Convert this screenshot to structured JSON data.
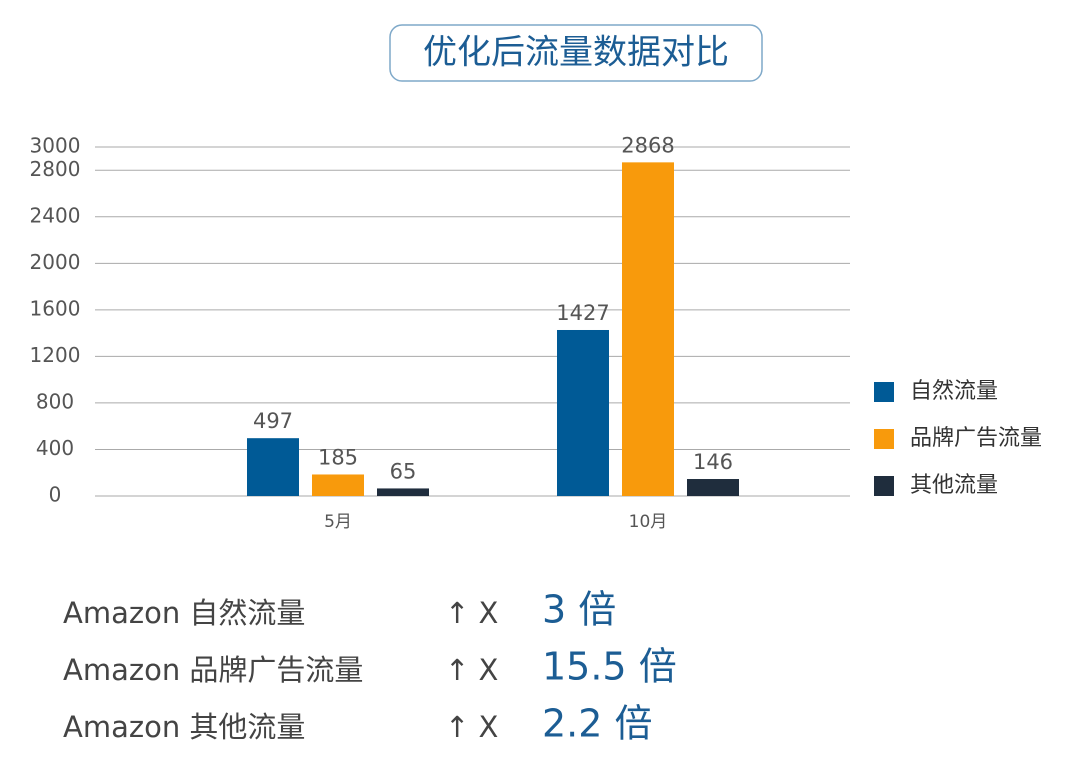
{
  "chart_data": {
    "type": "bar",
    "title": "优化后流量数据对比",
    "categories": [
      "5月",
      "10月"
    ],
    "series": [
      {
        "name": "自然流量",
        "color": "#005a96",
        "values": [
          497,
          1427
        ]
      },
      {
        "name": "品牌广告流量",
        "color": "#f89a0c",
        "values": [
          185,
          2868
        ]
      },
      {
        "name": "其他流量",
        "color": "#1f2d3d",
        "values": [
          65,
          146
        ]
      }
    ],
    "ylim": [
      0,
      3000
    ],
    "yticks": [
      0,
      400,
      800,
      1200,
      1600,
      2000,
      2400,
      2800,
      3000
    ],
    "grid": true,
    "legend": "right"
  },
  "summary": [
    {
      "label": "Amazon 自然流量",
      "symbol": "↑ X",
      "multiplier": "3 倍"
    },
    {
      "label": "Amazon 品牌广告流量",
      "symbol": "↑ X",
      "multiplier": "15.5 倍"
    },
    {
      "label": "Amazon 其他流量",
      "symbol": "↑ X",
      "multiplier": "2.2 倍"
    }
  ]
}
